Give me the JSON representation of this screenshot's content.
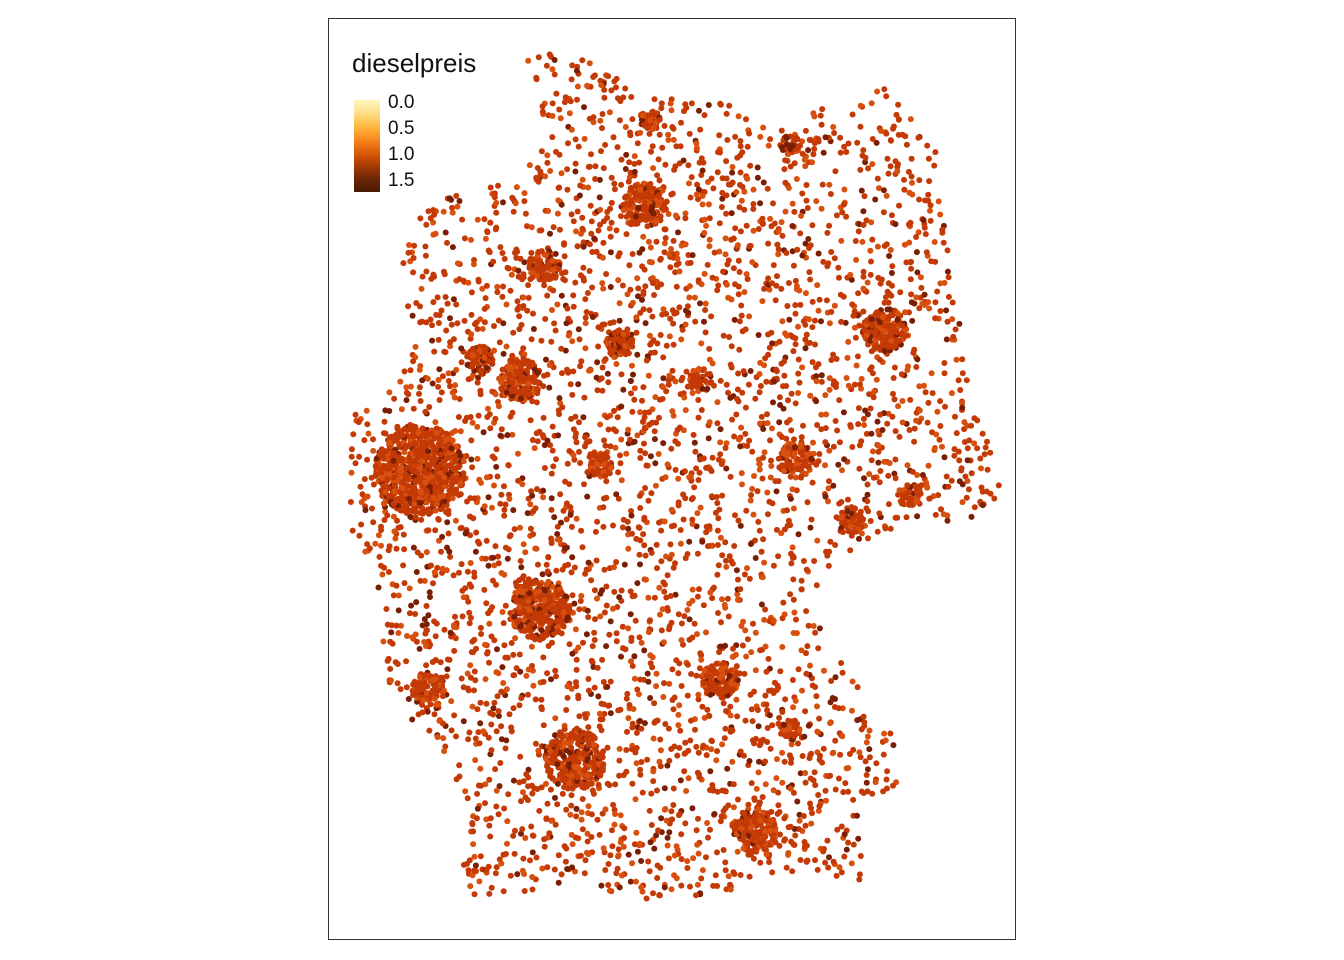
{
  "map": {
    "legend": {
      "title": "dieselpreis",
      "ticks": [
        "0.0",
        "0.5",
        "1.0",
        "1.5"
      ],
      "color_scale": [
        "#fff7bc",
        "#fee391",
        "#fec44f",
        "#fe9929",
        "#ec7014",
        "#cc4c02",
        "#993404",
        "#662506",
        "#4a1a04"
      ]
    },
    "point_color_main": "#c43a06",
    "point_color_dark": "#7a1f05",
    "point_color_light": "#d8500e"
  }
}
